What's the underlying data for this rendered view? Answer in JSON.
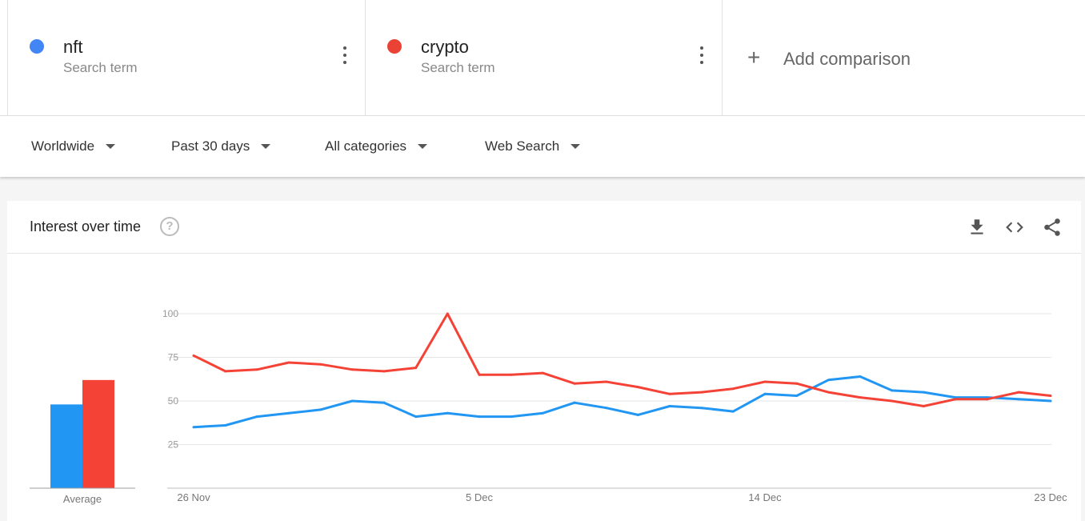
{
  "terms": [
    {
      "name": "nft",
      "type": "Search term",
      "color": "#4285f4"
    },
    {
      "name": "crypto",
      "type": "Search term",
      "color": "#ea4335"
    }
  ],
  "add_comparison": {
    "plus": "+",
    "label": "Add comparison"
  },
  "filters": {
    "region": "Worldwide",
    "time": "Past 30 days",
    "category": "All categories",
    "search_type": "Web Search"
  },
  "card": {
    "title": "Interest over time",
    "help": "?",
    "icons": [
      "download-icon",
      "embed-icon",
      "share-icon"
    ]
  },
  "chart_data": {
    "type": "line",
    "x": [
      "26 Nov",
      "27 Nov",
      "28 Nov",
      "29 Nov",
      "30 Nov",
      "1 Dec",
      "2 Dec",
      "3 Dec",
      "4 Dec",
      "5 Dec",
      "6 Dec",
      "7 Dec",
      "8 Dec",
      "9 Dec",
      "10 Dec",
      "11 Dec",
      "12 Dec",
      "13 Dec",
      "14 Dec",
      "15 Dec",
      "16 Dec",
      "17 Dec",
      "18 Dec",
      "19 Dec",
      "20 Dec",
      "21 Dec",
      "22 Dec",
      "23 Dec"
    ],
    "x_tick_labels": [
      "26 Nov",
      "5 Dec",
      "14 Dec",
      "23 Dec"
    ],
    "y_ticks": [
      25,
      50,
      75,
      100
    ],
    "ylim": [
      0,
      100
    ],
    "grid": true,
    "series": [
      {
        "name": "nft",
        "color": "#2196f3",
        "values": [
          35,
          36,
          41,
          43,
          45,
          50,
          49,
          41,
          43,
          41,
          41,
          43,
          49,
          46,
          42,
          47,
          46,
          44,
          54,
          53,
          62,
          64,
          56,
          55,
          52,
          52,
          51,
          50
        ]
      },
      {
        "name": "crypto",
        "color": "#f44336",
        "values": [
          76,
          67,
          68,
          72,
          71,
          68,
          67,
          69,
          100,
          65,
          65,
          66,
          60,
          61,
          58,
          54,
          55,
          57,
          61,
          60,
          55,
          52,
          50,
          47,
          51,
          51,
          55,
          53
        ]
      }
    ],
    "average": {
      "label": "Average",
      "values": [
        48,
        62
      ]
    }
  }
}
